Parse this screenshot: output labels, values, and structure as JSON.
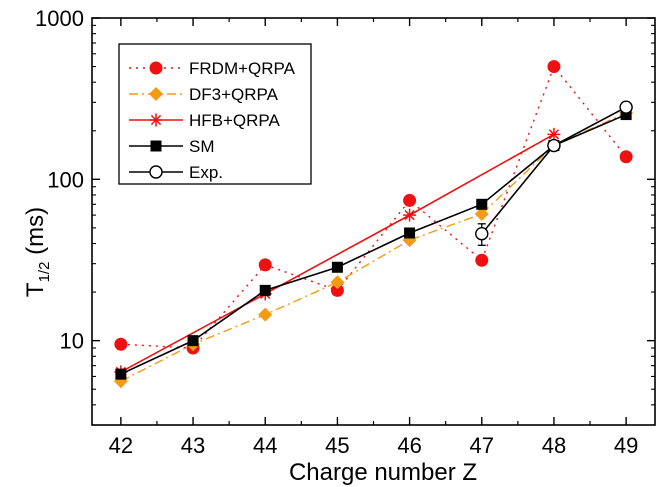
{
  "chart_data": {
    "type": "line",
    "title": "",
    "xlabel": "Charge number Z",
    "ylabel_main": "T",
    "ylabel_sub": "1/2",
    "ylabel_unit": " (ms)",
    "xlim": [
      41.6,
      49.4
    ],
    "ylim": [
      3,
      1000
    ],
    "yscale": "log",
    "x_ticks": [
      42,
      43,
      44,
      45,
      46,
      47,
      48,
      49
    ],
    "y_ticks": [
      {
        "value": 10,
        "label": "10"
      },
      {
        "value": 100,
        "label": "100"
      },
      {
        "value": 1000,
        "label": "1000"
      }
    ],
    "grid": false,
    "legend_position": "top-left",
    "series": [
      {
        "name": "FRDM+QRPA",
        "color": "#ee1111",
        "line": "dotted",
        "marker": "circle-filled",
        "points": [
          [
            42,
            9.5
          ],
          [
            43,
            9.0
          ],
          [
            44,
            29.5
          ],
          [
            45,
            20.5
          ],
          [
            46,
            74
          ],
          [
            47,
            31.5
          ],
          [
            48,
            500
          ],
          [
            49,
            138
          ]
        ]
      },
      {
        "name": "DF3+QRPA",
        "color": "#f39c12",
        "line": "dashdot",
        "marker": "diamond-filled",
        "points": [
          [
            42,
            5.6
          ],
          [
            43,
            9.5
          ],
          [
            44,
            14.5
          ],
          [
            45,
            23
          ],
          [
            46,
            42
          ],
          [
            47,
            61
          ],
          [
            48,
            162
          ],
          [
            49,
            258
          ]
        ]
      },
      {
        "name": "HFB+QRPA",
        "color": "#ee1111",
        "line": "solid",
        "marker": "asterisk",
        "points": [
          [
            42,
            6.4
          ],
          [
            44,
            19.5
          ],
          [
            46,
            60
          ],
          [
            48,
            190
          ]
        ]
      },
      {
        "name": "SM",
        "color": "#000000",
        "line": "solid",
        "marker": "square-filled",
        "points": [
          [
            42,
            6.2
          ],
          [
            43,
            10.0
          ],
          [
            44,
            20.5
          ],
          [
            45,
            28.5
          ],
          [
            46,
            46.5
          ],
          [
            47,
            70
          ],
          [
            48,
            162
          ],
          [
            49,
            252
          ]
        ]
      },
      {
        "name": "Exp.",
        "color": "#000000",
        "line": "solid",
        "marker": "circle-open",
        "points": [
          [
            47,
            46
          ],
          [
            48,
            162
          ],
          [
            49,
            280
          ]
        ],
        "error": [
          [
            47,
            7
          ],
          [
            48,
            0
          ],
          [
            49,
            0
          ]
        ]
      }
    ]
  }
}
